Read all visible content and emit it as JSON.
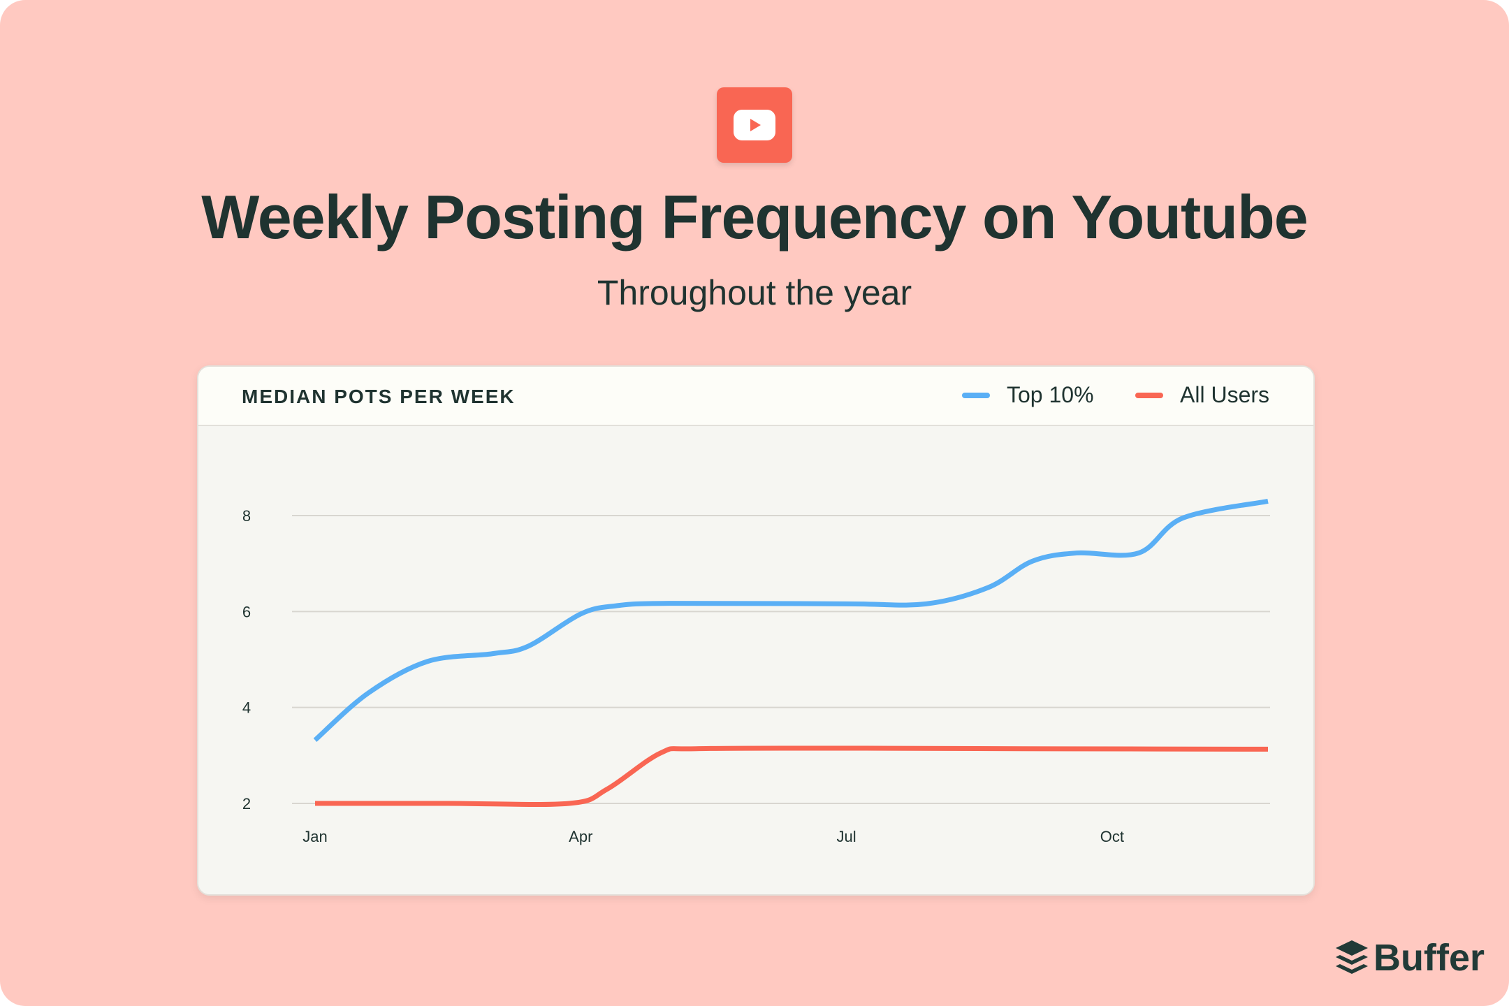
{
  "header": {
    "icon": "youtube-icon",
    "title": "Weekly Posting Frequency on Youtube",
    "subtitle": "Throughout the year"
  },
  "brand": {
    "name": "Buffer",
    "icon": "buffer-stack-icon"
  },
  "colors": {
    "background": "#ffc9c1",
    "top10": "#5aaff5",
    "all_users": "#f96653",
    "text": "#1f3330"
  },
  "chart_data": {
    "type": "line",
    "title": "MEDIAN POTS PER WEEK",
    "legend_position": "top-right",
    "grid": true,
    "x_ticks": [
      {
        "x": 1,
        "label": "Jan"
      },
      {
        "x": 4,
        "label": "Apr"
      },
      {
        "x": 7,
        "label": "Jul"
      },
      {
        "x": 10,
        "label": "Oct"
      }
    ],
    "y_ticks": [
      2,
      4,
      6,
      8
    ],
    "xlim": [
      1,
      11.76
    ],
    "ylim": [
      2,
      8
    ],
    "series": [
      {
        "name": "Top 10%",
        "color": "#5aaff5",
        "points": [
          [
            1,
            3.32
          ],
          [
            1.6,
            4.3
          ],
          [
            2.27,
            4.96
          ],
          [
            3.0,
            5.12
          ],
          [
            3.41,
            5.28
          ],
          [
            4.0,
            5.95
          ],
          [
            4.4,
            6.12
          ],
          [
            5.0,
            6.17
          ],
          [
            7.0,
            6.16
          ],
          [
            7.9,
            6.16
          ],
          [
            8.6,
            6.5
          ],
          [
            9.1,
            7.05
          ],
          [
            9.6,
            7.22
          ],
          [
            10.3,
            7.22
          ],
          [
            10.8,
            7.95
          ],
          [
            11.76,
            8.3
          ]
        ]
      },
      {
        "name": "All Users",
        "color": "#f96653",
        "points": [
          [
            1,
            2.0
          ],
          [
            2.5,
            2.0
          ],
          [
            3.87,
            2.0
          ],
          [
            4.3,
            2.3
          ],
          [
            4.9,
            3.05
          ],
          [
            5.3,
            3.14
          ],
          [
            7,
            3.15
          ],
          [
            9,
            3.14
          ],
          [
            11.76,
            3.13
          ]
        ]
      }
    ]
  }
}
